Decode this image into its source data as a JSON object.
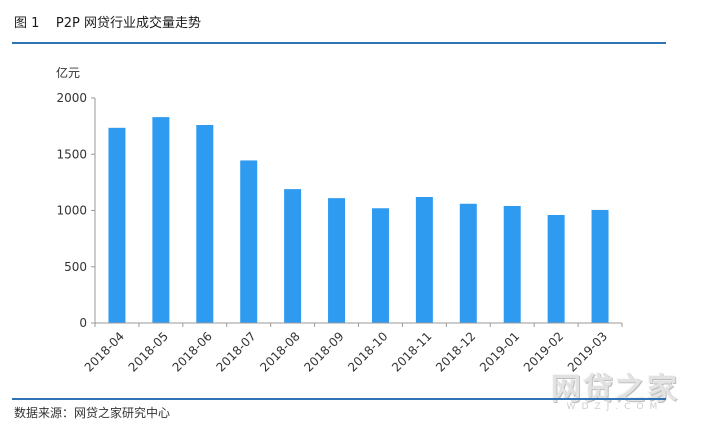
{
  "figure": {
    "title": "图 1    P2P 网贷行业成交量走势",
    "source": "数据来源：网贷之家研究中心",
    "watermark": "网贷之家",
    "watermark_url": "WDZJ.COM"
  },
  "colors": {
    "bar": "#2e9bf0",
    "rule": "#2e74b5",
    "axis": "#9a9a9a"
  },
  "chart_data": {
    "type": "bar",
    "title": "",
    "xlabel": "",
    "ylabel": "亿元",
    "ylim": [
      0,
      2000
    ],
    "yticks": [
      0,
      500,
      1000,
      1500,
      2000
    ],
    "categories": [
      "2018-04",
      "2018-05",
      "2018-06",
      "2018-07",
      "2018-08",
      "2018-09",
      "2018-10",
      "2018-11",
      "2018-12",
      "2019-01",
      "2019-02",
      "2019-03"
    ],
    "values": [
      1735,
      1830,
      1760,
      1445,
      1190,
      1110,
      1020,
      1120,
      1060,
      1040,
      960,
      1005
    ],
    "grid": false,
    "legend": "none"
  }
}
